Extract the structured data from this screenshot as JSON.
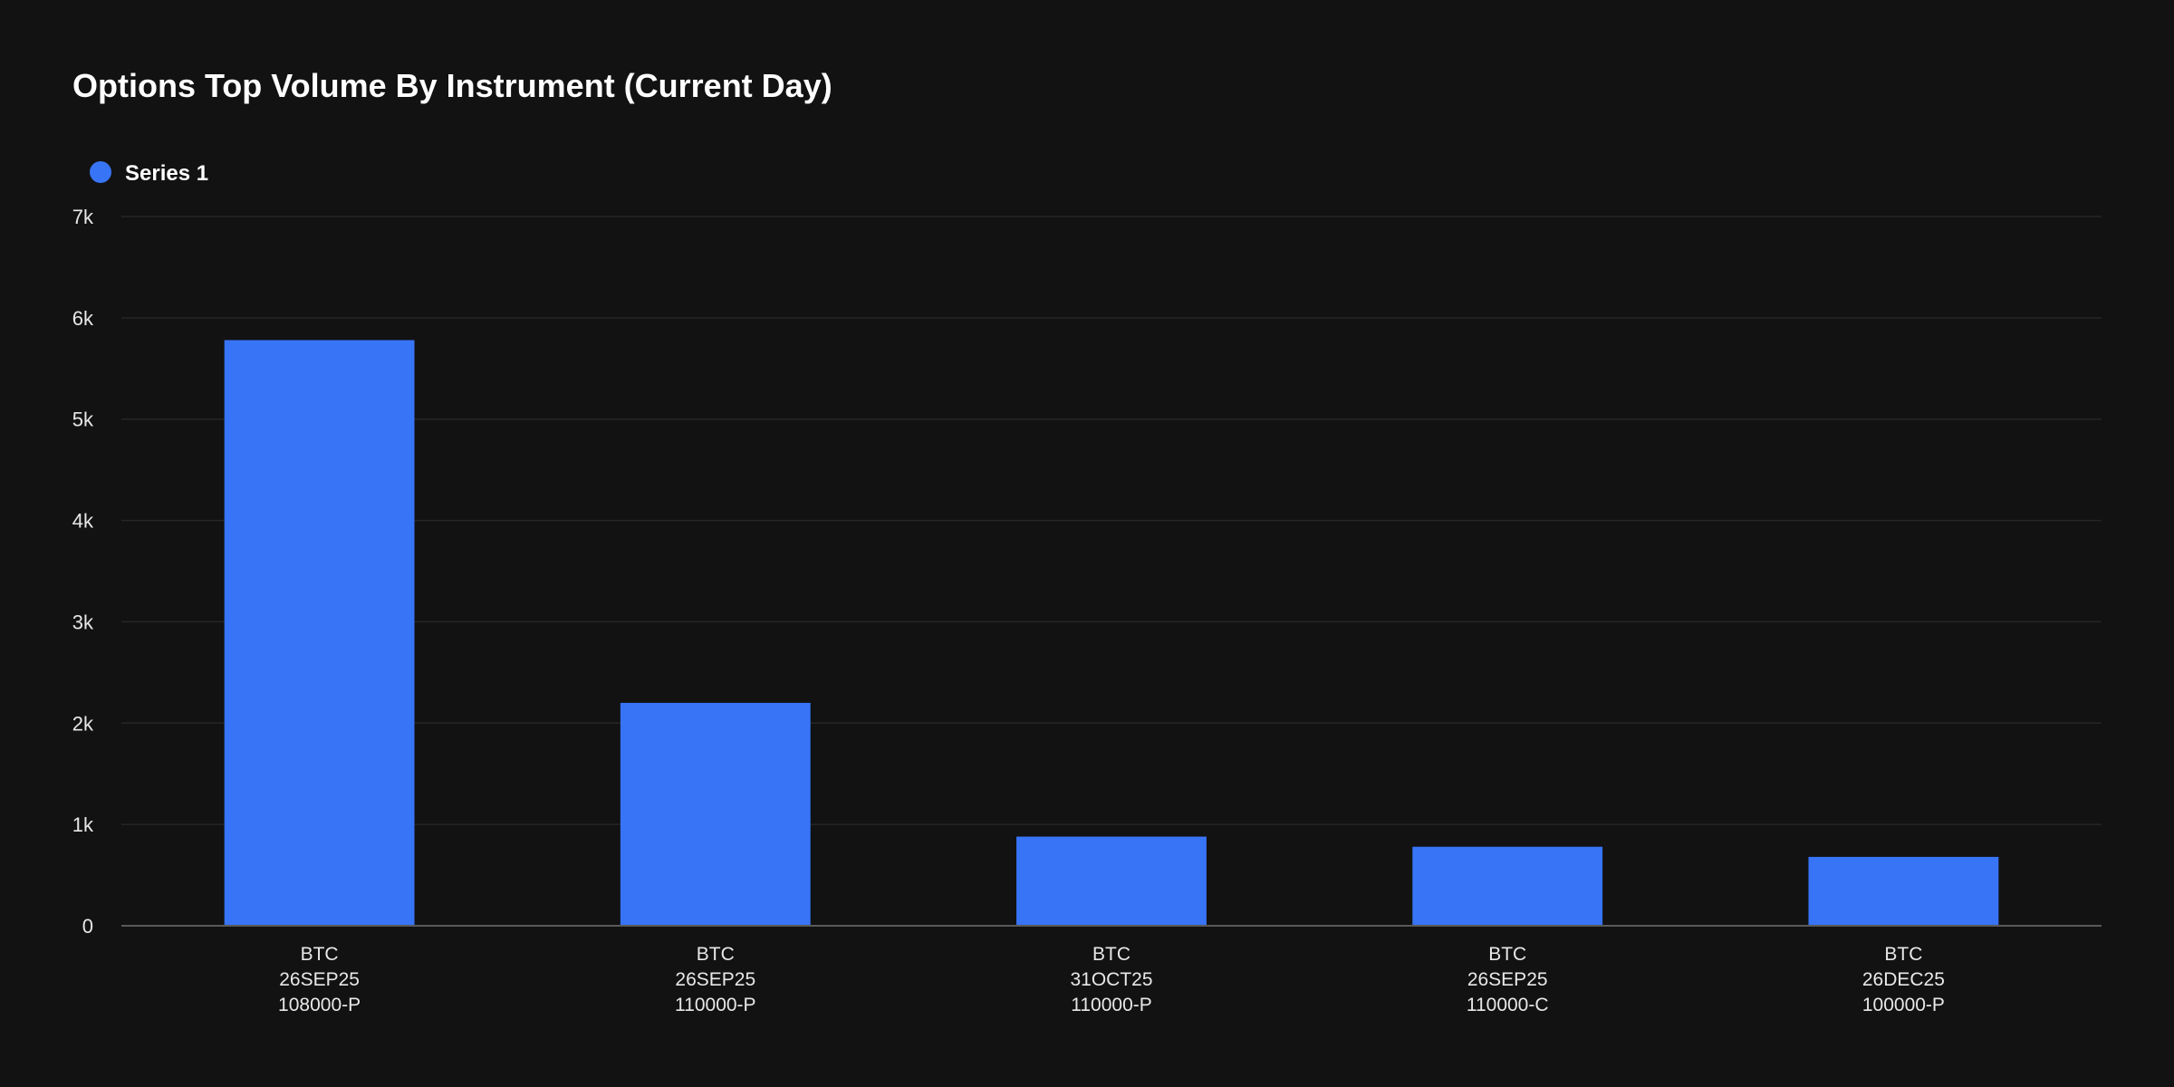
{
  "chart_data": {
    "type": "bar",
    "title": "Options Top Volume By Instrument (Current Day)",
    "categories": [
      [
        "BTC",
        "26SEP25",
        "108000-P"
      ],
      [
        "BTC",
        "26SEP25",
        "110000-P"
      ],
      [
        "BTC",
        "31OCT25",
        "110000-P"
      ],
      [
        "BTC",
        "26SEP25",
        "110000-C"
      ],
      [
        "BTC",
        "26DEC25",
        "100000-P"
      ]
    ],
    "series": [
      {
        "name": "Series 1",
        "color": "#3874f6",
        "values": [
          5780,
          2200,
          880,
          780,
          680
        ]
      }
    ],
    "y_ticks": [
      {
        "value": 0,
        "label": "0"
      },
      {
        "value": 1000,
        "label": "1k"
      },
      {
        "value": 2000,
        "label": "2k"
      },
      {
        "value": 3000,
        "label": "3k"
      },
      {
        "value": 4000,
        "label": "4k"
      },
      {
        "value": 5000,
        "label": "5k"
      },
      {
        "value": 6000,
        "label": "6k"
      },
      {
        "value": 7000,
        "label": "7k"
      }
    ],
    "ylim": [
      0,
      7000
    ],
    "xlabel": "",
    "ylabel": "",
    "grid": true,
    "legend_position": "top-left",
    "background_color": "#121212"
  }
}
